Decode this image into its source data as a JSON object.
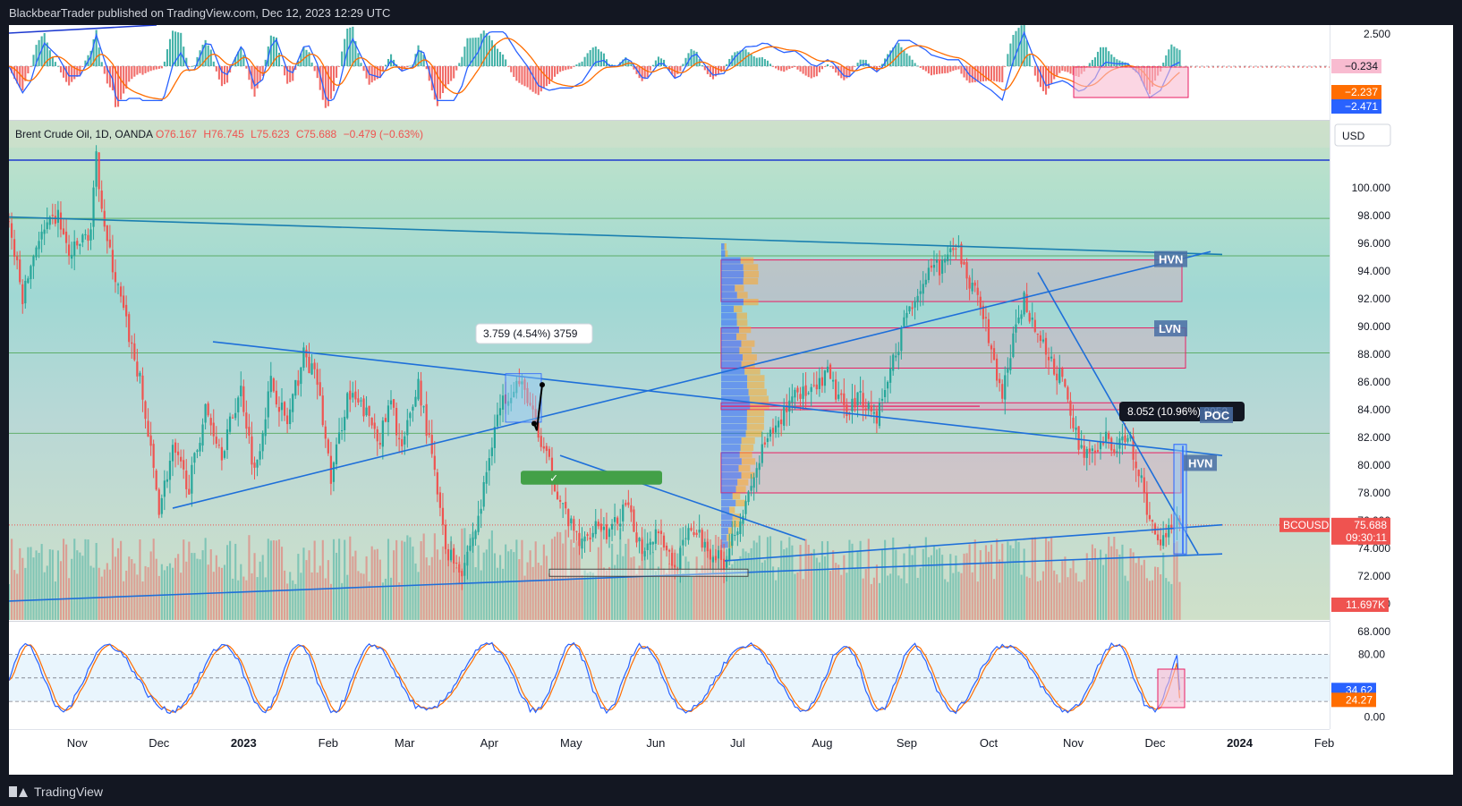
{
  "header": {
    "publisher_text": "BlackbearTrader published on TradingView.com, Dec 12, 2023 12:29 UTC"
  },
  "footer": {
    "brand": "TradingView"
  },
  "legend": {
    "symbol": "Brent Crude Oil, 1D, OANDA",
    "open": "O76.167",
    "high": "H76.745",
    "low": "L75.623",
    "close": "C75.688",
    "change": "−0.479 (−0.63%)"
  },
  "currency": "USD",
  "colors": {
    "up": "#26a69a",
    "down": "#ef5350",
    "trend": "#2962ff",
    "zone": "#e91e63",
    "macd": "#2962ff",
    "signal": "#ff6d00"
  },
  "chart_data": [
    {
      "type": "candlestick",
      "symbol": "BCOUSD",
      "y_ticks": [
        "100.000",
        "98.000",
        "96.000",
        "94.000",
        "92.000",
        "90.000",
        "88.000",
        "86.000",
        "84.000",
        "82.000",
        "80.000",
        "78.000",
        "76.000",
        "74.000",
        "72.000",
        "70.000",
        "68.000"
      ],
      "ylim": [
        68,
        104
      ],
      "x_ticks": [
        {
          "label": "Nov",
          "d": 25
        },
        {
          "label": "Dec",
          "d": 55
        },
        {
          "label": "2023",
          "d": 86,
          "bold": true
        },
        {
          "label": "Feb",
          "d": 117
        },
        {
          "label": "Mar",
          "d": 145
        },
        {
          "label": "Apr",
          "d": 176
        },
        {
          "label": "May",
          "d": 206
        },
        {
          "label": "Jun",
          "d": 237
        },
        {
          "label": "Jul",
          "d": 267
        },
        {
          "label": "Aug",
          "d": 298
        },
        {
          "label": "Sep",
          "d": 329
        },
        {
          "label": "Oct",
          "d": 359
        },
        {
          "label": "Nov",
          "d": 390
        },
        {
          "label": "Dec",
          "d": 420
        },
        {
          "label": "2024",
          "d": 451,
          "bold": true
        },
        {
          "label": "Feb",
          "d": 482
        }
      ],
      "price_path": [
        [
          0,
          97.5
        ],
        [
          5,
          92
        ],
        [
          10,
          96
        ],
        [
          18,
          98
        ],
        [
          22,
          95
        ],
        [
          30,
          97
        ],
        [
          32,
          102
        ],
        [
          36,
          96
        ],
        [
          42,
          91
        ],
        [
          48,
          86
        ],
        [
          55,
          77
        ],
        [
          60,
          81
        ],
        [
          66,
          78.5
        ],
        [
          72,
          84
        ],
        [
          78,
          81
        ],
        [
          85,
          85.5
        ],
        [
          90,
          79.5
        ],
        [
          96,
          86
        ],
        [
          102,
          83
        ],
        [
          108,
          88
        ],
        [
          113,
          86
        ],
        [
          118,
          79
        ],
        [
          124,
          85
        ],
        [
          130,
          84
        ],
        [
          136,
          82
        ],
        [
          140,
          84.5
        ],
        [
          144,
          81
        ],
        [
          150,
          86
        ],
        [
          155,
          80.5
        ],
        [
          160,
          74
        ],
        [
          166,
          72.5
        ],
        [
          172,
          76
        ],
        [
          178,
          83
        ],
        [
          182,
          85
        ],
        [
          186,
          86
        ],
        [
          190,
          85
        ],
        [
          194,
          82
        ],
        [
          198,
          80
        ],
        [
          202,
          77.5
        ],
        [
          206,
          75.5
        ],
        [
          210,
          74.2
        ],
        [
          215,
          76
        ],
        [
          220,
          75
        ],
        [
          226,
          77
        ],
        [
          232,
          74
        ],
        [
          238,
          75.5
        ],
        [
          244,
          72.5
        ],
        [
          250,
          75.5
        ],
        [
          256,
          74
        ],
        [
          262,
          73
        ],
        [
          266,
          75.5
        ],
        [
          270,
          77
        ],
        [
          276,
          81
        ],
        [
          282,
          83
        ],
        [
          288,
          85.5
        ],
        [
          294,
          85
        ],
        [
          300,
          86.5
        ],
        [
          306,
          84
        ],
        [
          312,
          85
        ],
        [
          318,
          83.5
        ],
        [
          324,
          87.5
        ],
        [
          330,
          91.5
        ],
        [
          336,
          93.5
        ],
        [
          342,
          94.5
        ],
        [
          348,
          95.5
        ],
        [
          352,
          93
        ],
        [
          356,
          92
        ],
        [
          360,
          88
        ],
        [
          364,
          85
        ],
        [
          368,
          89
        ],
        [
          372,
          92
        ],
        [
          376,
          90
        ],
        [
          380,
          88
        ],
        [
          386,
          86
        ],
        [
          392,
          81.5
        ],
        [
          398,
          80.5
        ],
        [
          402,
          82
        ],
        [
          406,
          81
        ],
        [
          410,
          82.5
        ],
        [
          414,
          79.5
        ],
        [
          418,
          76
        ],
        [
          422,
          74.5
        ],
        [
          426,
          76
        ],
        [
          429,
          75.7
        ]
      ],
      "key_levels": [
        {
          "label": "HVN",
          "from": 94.8,
          "to": 91.8
        },
        {
          "label": "LVN",
          "from": 89.9,
          "to": 87
        },
        {
          "label": "POC",
          "from": 84.5,
          "to": 84.0
        },
        {
          "label": "HVN",
          "from": 80.9,
          "to": 78
        }
      ],
      "annotations": [
        {
          "text": "3.759 (4.54%) 3759",
          "type": "measure"
        },
        {
          "text": "8.052 (10.96%) 8052",
          "type": "measure"
        }
      ],
      "price_label": {
        "symbol": "BCOUSD",
        "price": "75.688",
        "countdown": "09:30:11"
      },
      "volume_label": "11.697K"
    },
    {
      "type": "histogram",
      "name": "MACD",
      "y_ticks": [
        "2.500"
      ],
      "labels": [
        {
          "value": "−0.234",
          "kind": "histogram"
        },
        {
          "value": "−2.237",
          "kind": "signal"
        },
        {
          "value": "−2.471",
          "kind": "macd"
        }
      ]
    },
    {
      "type": "line",
      "name": "Stochastic",
      "y_ticks": [
        "80.00",
        "0.00"
      ],
      "ylim": [
        -5,
        100
      ],
      "labels": [
        {
          "value": "34.62",
          "kind": "k"
        },
        {
          "value": "24.27",
          "kind": "d"
        }
      ]
    }
  ]
}
